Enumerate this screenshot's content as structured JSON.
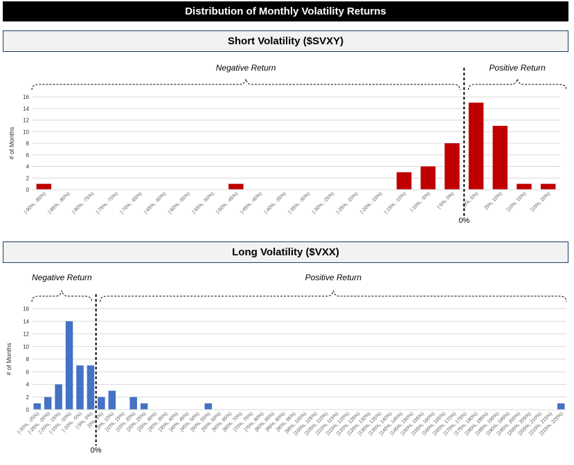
{
  "page_title": "Distribution of Monthly Volatility Returns",
  "colors": {
    "short": "#c00000",
    "long": "#4472c4"
  },
  "chart_data": [
    {
      "type": "bar",
      "title": "Short Volatility ($SVXY)",
      "ylabel": "# of Months",
      "ylim": [
        0,
        16
      ],
      "yticks": [
        "0",
        "2",
        "4",
        "6",
        "8",
        "10",
        "12",
        "14",
        "16"
      ],
      "grid": true,
      "categories": [
        "[-90%, -85%)",
        "[-85%, -80%)",
        "[-80%, -75%)",
        "[-75%, -70%)",
        "[-70%, -65%)",
        "[-65%, -60%)",
        "[-60%, -55%)",
        "[-55%, -50%)",
        "[-50%, -45%)",
        "[-45%, -40%)",
        "[-40%, -35%)",
        "[-35%, -30%)",
        "[-30%, -25%)",
        "[-25%, -20%)",
        "[-20%, -15%)",
        "[-15%, -10%)",
        "[-10%, -5%)",
        "[-5%, 0%)",
        "[0%, 5%)",
        "[5%, 10%)",
        "[10%, 15%)",
        "[15%, 20%)"
      ],
      "values": [
        1,
        0,
        0,
        0,
        0,
        0,
        0,
        0,
        1,
        0,
        0,
        0,
        0,
        0,
        0,
        3,
        4,
        8,
        15,
        11,
        1,
        1
      ],
      "negative_label": "Negative Return",
      "positive_label": "Positive Return",
      "zero_label": "0%"
    },
    {
      "type": "bar",
      "title": "Long Volatility ($VXX)",
      "ylabel": "# of Months",
      "ylim": [
        0,
        16
      ],
      "yticks": [
        "0",
        "2",
        "4",
        "6",
        "8",
        "10",
        "12",
        "14",
        "16"
      ],
      "grid": true,
      "categories": [
        "[-30%, -25%)",
        "[-25%, -20%)",
        "[-20%, -15%)",
        "[-15%, -10%)",
        "[-10%, -5%)",
        "[-5%, 0%)",
        "[0%, 5%)",
        "[5%, 10%)",
        "[10%, 15%)",
        "[15%, 20%)",
        "[20%, 25%)",
        "[25%, 30%)",
        "[30%, 35%)",
        "[35%, 40%)",
        "[40%, 45%)",
        "[45%, 50%)",
        "[50%, 55%)",
        "[55%, 60%)",
        "[60%, 65%)",
        "[65%, 70%)",
        "[70%, 75%)",
        "[75%, 80%)",
        "[80%, 85%)",
        "[85%, 90%)",
        "[90%, 95%)",
        "[95%, 100%)",
        "[100%, 105%)",
        "[105%, 110%)",
        "[110%, 115%)",
        "[115%, 120%)",
        "[120%, 125%)",
        "[125%, 130%)",
        "[130%, 135%)",
        "[135%, 140%)",
        "[140%, 145%)",
        "[145%, 150%)",
        "[150%, 155%)",
        "[155%, 160%)",
        "[160%, 165%)",
        "[165%, 170%)",
        "[170%, 175%)",
        "[175%, 180%)",
        "[180%, 185%)",
        "[185%, 190%)",
        "[190%, 195%)",
        "[195%, 200%)",
        "[200%, 205%)",
        "[205%, 210%)",
        "[210%, 215%)",
        "[215%, 220%)"
      ],
      "values": [
        1,
        2,
        4,
        14,
        7,
        7,
        2,
        3,
        0,
        2,
        1,
        0,
        0,
        0,
        0,
        0,
        1,
        0,
        0,
        0,
        0,
        0,
        0,
        0,
        0,
        0,
        0,
        0,
        0,
        0,
        0,
        0,
        0,
        0,
        0,
        0,
        0,
        0,
        0,
        0,
        0,
        0,
        0,
        0,
        0,
        0,
        0,
        0,
        0,
        1
      ],
      "negative_label": "Negative Return",
      "positive_label": "Positive Return",
      "zero_label": "0%"
    }
  ]
}
